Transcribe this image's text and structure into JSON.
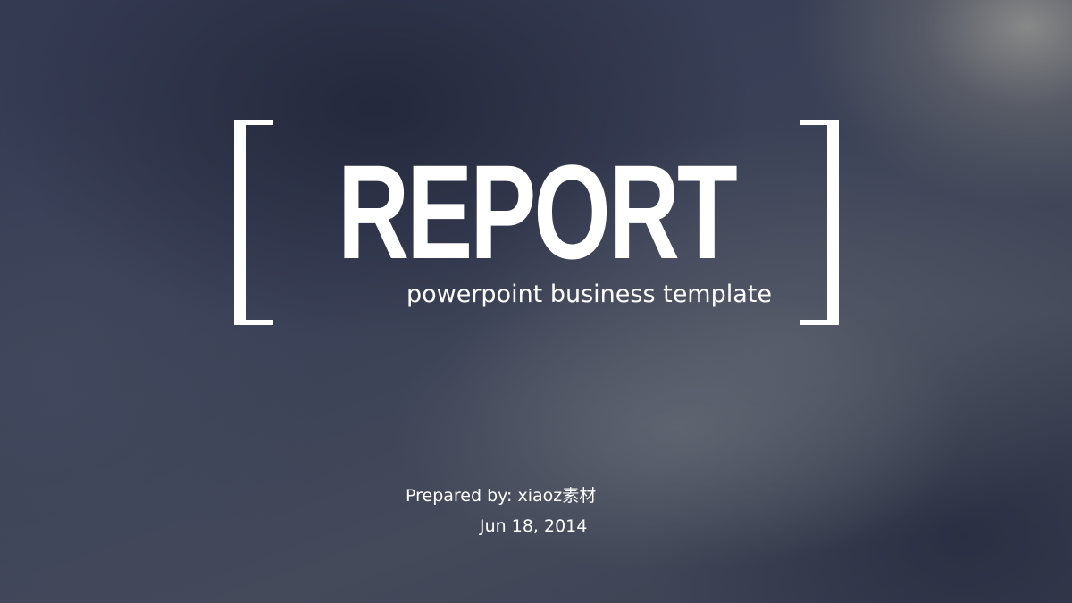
{
  "slide": {
    "title": "REPORT",
    "subtitle": "powerpoint business template",
    "prepared_by": "Prepared by: xiaoz素材",
    "date": "Jun 18, 2014"
  },
  "colors": {
    "text": "#ffffff",
    "background_dark": "#2f3548",
    "background_light": "#8c8c8a"
  }
}
